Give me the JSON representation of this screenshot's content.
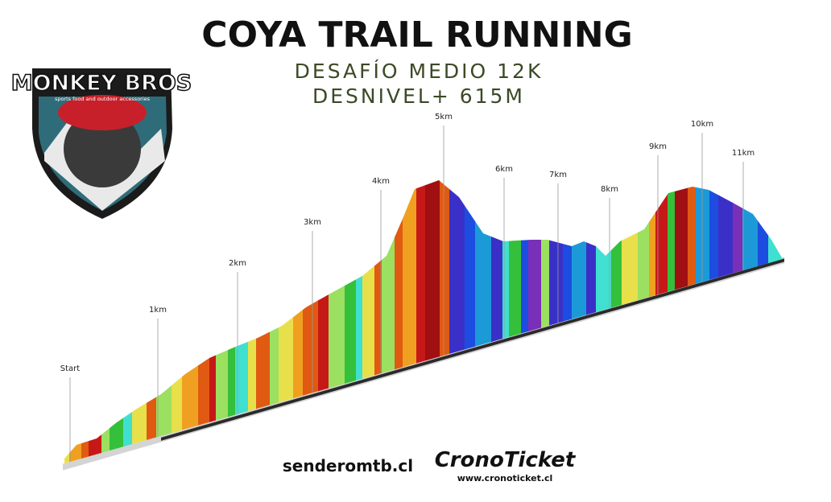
{
  "header": {
    "title": "COYA TRAIL RUNNING",
    "subtitle": [
      "DESAFÍO MEDIO 12K",
      "DESNIVEL+ 615M"
    ]
  },
  "logo": {
    "name": "MONKEY BROS",
    "tagline": "sports food and outdoor accessories"
  },
  "markers": [
    {
      "label": "Start"
    },
    {
      "label": "1km"
    },
    {
      "label": "2km"
    },
    {
      "label": "3km"
    },
    {
      "label": "4km"
    },
    {
      "label": "5km"
    },
    {
      "label": "6km"
    },
    {
      "label": "7km"
    },
    {
      "label": "8km"
    },
    {
      "label": "9km"
    },
    {
      "label": "10km"
    },
    {
      "label": "11km"
    }
  ],
  "footer": {
    "left": "senderomtb.cl",
    "brand": "CronoTicket",
    "url": "www.cronoticket.cl"
  }
}
